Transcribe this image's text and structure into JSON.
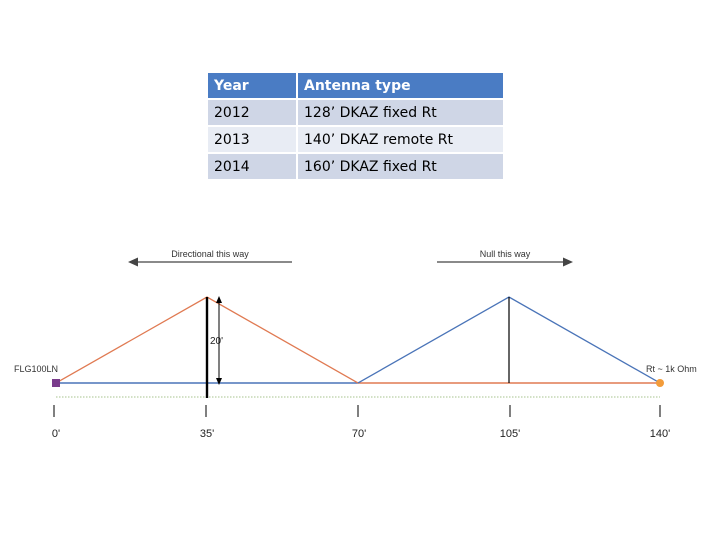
{
  "table": {
    "headers": [
      "Year",
      "Antenna type"
    ],
    "rows": [
      [
        "2012",
        "128’ DKAZ fixed Rt"
      ],
      [
        "2013",
        "140’ DKAZ remote Rt"
      ],
      [
        "2014",
        "160’ DKAZ fixed Rt"
      ]
    ]
  },
  "diagram": {
    "directional_label": "Directional this way",
    "null_label": "Null this way",
    "feed_label": "FLG100LN",
    "termination_label": "Rt ~ 1k Ohm",
    "height_label": "20'",
    "distance_labels": [
      "0'",
      "35'",
      "70'",
      "105'",
      "140'"
    ],
    "colors": {
      "orange_wire": "#e07a52",
      "blue_wire": "#4a74b8",
      "feedpoint": "#7a3c8c",
      "termination": "#f39c3a",
      "header": "#4a7cc4"
    }
  }
}
